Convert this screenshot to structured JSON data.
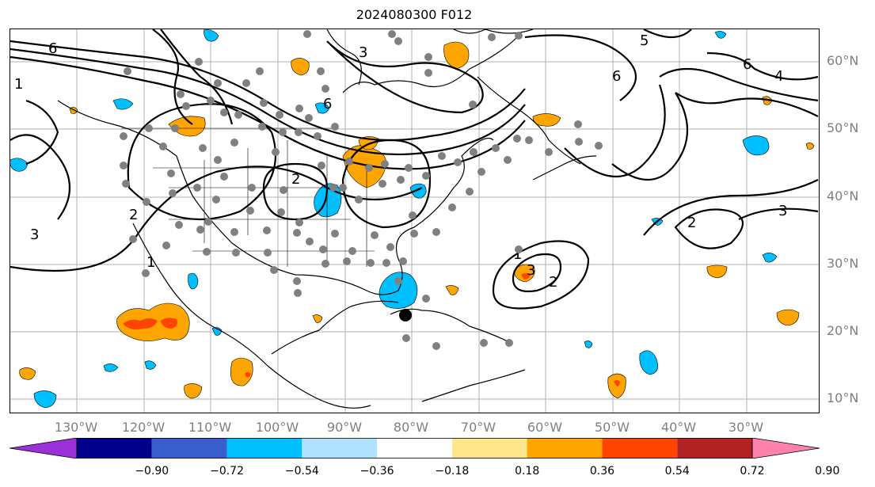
{
  "title": "2024080300 F012",
  "lat_labels": [
    "60°N",
    "50°N",
    "40°N",
    "30°N",
    "20°N",
    "10°N"
  ],
  "lon_labels": [
    "130°W",
    "120°W",
    "110°W",
    "100°W",
    "90°W",
    "80°W",
    "70°W",
    "60°W",
    "50°W",
    "40°W",
    "30°W"
  ],
  "contour_labels": [
    "6",
    "5",
    "4",
    "3",
    "2",
    "1"
  ],
  "colorbar": {
    "ticks": [
      "−0.90",
      "−0.72",
      "−0.54",
      "−0.36",
      "−0.18",
      "0.18",
      "0.36",
      "0.54",
      "0.72",
      "0.90"
    ],
    "colors": [
      "#9b30d8",
      "#00008b",
      "#3a5fcd",
      "#00bfff",
      "#b0e2ff",
      "#ffffff",
      "#ffe68a",
      "#ffa500",
      "#ff4500",
      "#b22222",
      "#ff82ab"
    ]
  }
}
